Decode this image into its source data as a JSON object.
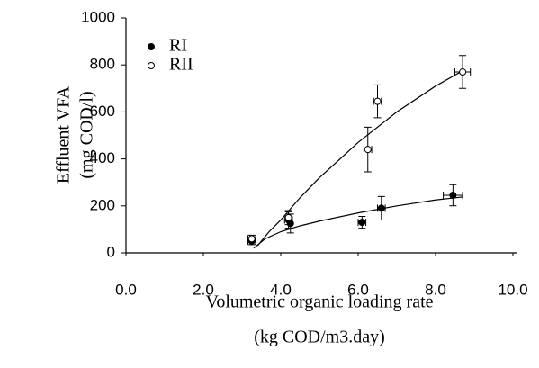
{
  "chart_data": {
    "type": "scatter",
    "xlabel": [
      "Volumetric organic loading rate",
      "(kg COD/m3.day)"
    ],
    "ylabel": [
      "Effluent VFA",
      "(mg COD/l)"
    ],
    "xlim": [
      0,
      10
    ],
    "xticks": [
      {
        "value": 0,
        "label": "0.0"
      },
      {
        "value": 2,
        "label": "2.0"
      },
      {
        "value": 4,
        "label": "4.0"
      },
      {
        "value": 6,
        "label": "6.0"
      },
      {
        "value": 8,
        "label": "8.0"
      },
      {
        "value": 10,
        "label": "10.0"
      }
    ],
    "ylim": [
      0,
      1000
    ],
    "yticks": [
      0,
      200,
      400,
      600,
      800,
      1000
    ],
    "legend": "upper-left",
    "series": [
      {
        "name": "RI",
        "color": "#000000",
        "marker": "filled",
        "x": [
          3.25,
          4.2,
          4.25,
          6.1,
          6.6,
          8.45
        ],
        "values": [
          50,
          140,
          125,
          130,
          190,
          245
        ],
        "error": [
          15,
          35,
          40,
          25,
          50,
          45
        ],
        "xerror": [
          0.1,
          0.1,
          null,
          0.1,
          0.1,
          0.25
        ],
        "fit": {
          "x": [
            3.3,
            3.6,
            4,
            4.5,
            5,
            6,
            7,
            8,
            8.7
          ],
          "values": [
            20,
            60,
            90,
            115,
            135,
            170,
            200,
            225,
            238
          ]
        }
      },
      {
        "name": "RII",
        "color": "#000000",
        "marker": "open",
        "x": [
          3.25,
          4.2,
          6.25,
          6.5,
          8.7
        ],
        "values": [
          60,
          150,
          440,
          645,
          770
        ],
        "error": [
          15,
          30,
          95,
          70,
          70
        ],
        "xerror": [
          0.1,
          null,
          0.1,
          0.1,
          0.2
        ],
        "fit": {
          "x": [
            3.4,
            3.7,
            4,
            4.5,
            5,
            6,
            7,
            8,
            8.7
          ],
          "values": [
            30,
            90,
            140,
            235,
            320,
            470,
            600,
            710,
            775
          ]
        }
      }
    ]
  }
}
